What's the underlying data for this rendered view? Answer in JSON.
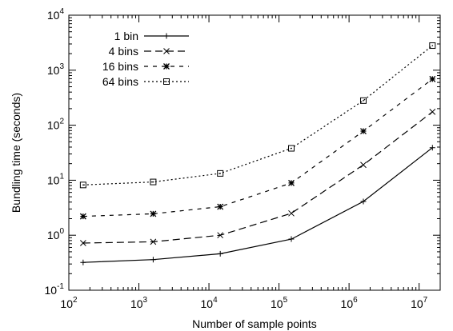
{
  "chart_data": {
    "type": "line",
    "title": "",
    "xlabel": "Number of sample points",
    "ylabel": "Bundling time (seconds)",
    "xscale": "log",
    "yscale": "log",
    "xlim": [
      100,
      20000000
    ],
    "ylim": [
      0.1,
      10000
    ],
    "x_ticks": [
      {
        "base": "10",
        "exp": "2"
      },
      {
        "base": "10",
        "exp": "3"
      },
      {
        "base": "10",
        "exp": "4"
      },
      {
        "base": "10",
        "exp": "5"
      },
      {
        "base": "10",
        "exp": "6"
      },
      {
        "base": "10",
        "exp": "7"
      }
    ],
    "y_ticks": [
      {
        "base": "10",
        "exp": "-1"
      },
      {
        "base": "10",
        "exp": "0"
      },
      {
        "base": "10",
        "exp": "1"
      },
      {
        "base": "10",
        "exp": "2"
      },
      {
        "base": "10",
        "exp": "3"
      },
      {
        "base": "10",
        "exp": "4"
      }
    ],
    "legend_position": "top-left",
    "grid": false,
    "x": [
      160,
      1600,
      14500,
      150000,
      1600000,
      15500000
    ],
    "series": [
      {
        "name": "1 bin",
        "marker": "plus",
        "dash": "solid",
        "values": [
          0.32,
          0.36,
          0.46,
          0.85,
          4.1,
          39
        ]
      },
      {
        "name": "4 bins",
        "marker": "cross",
        "dash": "dashed",
        "values": [
          0.72,
          0.76,
          1.0,
          2.5,
          19,
          175
        ]
      },
      {
        "name": "16 bins",
        "marker": "star",
        "dash": "dashdot",
        "values": [
          2.2,
          2.45,
          3.3,
          8.9,
          78,
          690
        ]
      },
      {
        "name": "64 bins",
        "marker": "square",
        "dash": "dotted",
        "values": [
          8.2,
          9.3,
          13.3,
          38,
          280,
          2800
        ]
      }
    ]
  }
}
